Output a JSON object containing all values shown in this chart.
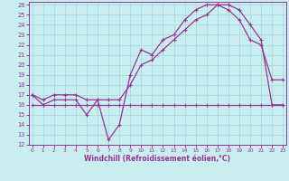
{
  "xlabel": "Windchill (Refroidissement éolien,°C)",
  "xlim": [
    0,
    23
  ],
  "ylim": [
    12,
    26
  ],
  "xticks": [
    0,
    1,
    2,
    3,
    4,
    5,
    6,
    7,
    8,
    9,
    10,
    11,
    12,
    13,
    14,
    15,
    16,
    17,
    18,
    19,
    20,
    21,
    22,
    23
  ],
  "yticks": [
    12,
    13,
    14,
    15,
    16,
    17,
    18,
    19,
    20,
    21,
    22,
    23,
    24,
    25,
    26
  ],
  "bg_color": "#c8eef0",
  "line_color": "#993399",
  "grid_color": "#aadddd",
  "line1_x": [
    0,
    1,
    2,
    3,
    4,
    5,
    6,
    7,
    8,
    9,
    10,
    11,
    12,
    13,
    14,
    15,
    16,
    17,
    18,
    19,
    20,
    21,
    22,
    23
  ],
  "line1_y": [
    16.0,
    16.0,
    16.0,
    16.0,
    16.0,
    16.0,
    16.0,
    16.0,
    16.0,
    16.0,
    16.0,
    16.0,
    16.0,
    16.0,
    16.0,
    16.0,
    16.0,
    16.0,
    16.0,
    16.0,
    16.0,
    16.0,
    16.0,
    16.0
  ],
  "line2_x": [
    0,
    1,
    2,
    3,
    4,
    5,
    6,
    7,
    8,
    9,
    10,
    11,
    12,
    13,
    14,
    15,
    16,
    17,
    18,
    19,
    20,
    21,
    22,
    23
  ],
  "line2_y": [
    17.0,
    16.0,
    16.5,
    16.5,
    16.5,
    15.0,
    16.5,
    12.5,
    14.0,
    19.0,
    21.5,
    21.0,
    22.5,
    23.0,
    24.5,
    25.5,
    26.0,
    26.0,
    25.5,
    24.5,
    22.5,
    22.0,
    18.5,
    18.5
  ],
  "line3_x": [
    0,
    1,
    2,
    3,
    4,
    5,
    6,
    7,
    8,
    9,
    10,
    11,
    12,
    13,
    14,
    15,
    16,
    17,
    18,
    19,
    20,
    21,
    22,
    23
  ],
  "line3_y": [
    17.0,
    16.5,
    17.0,
    17.0,
    17.0,
    16.5,
    16.5,
    16.5,
    16.5,
    18.0,
    20.0,
    20.5,
    21.5,
    22.5,
    23.5,
    24.5,
    25.0,
    26.0,
    26.0,
    25.5,
    24.0,
    22.5,
    16.0,
    16.0
  ]
}
